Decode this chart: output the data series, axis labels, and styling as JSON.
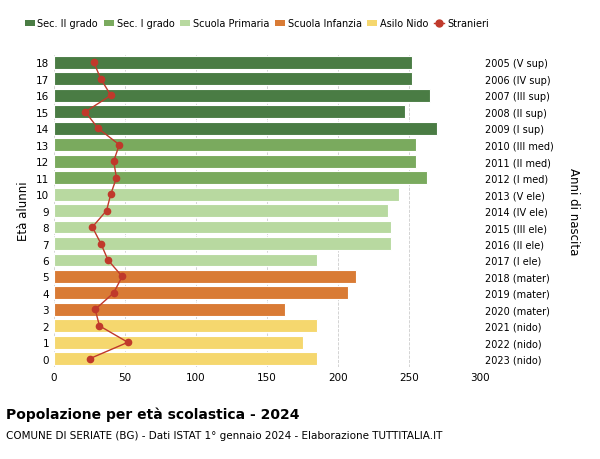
{
  "ages": [
    18,
    17,
    16,
    15,
    14,
    13,
    12,
    11,
    10,
    9,
    8,
    7,
    6,
    5,
    4,
    3,
    2,
    1,
    0
  ],
  "right_labels": [
    "2005 (V sup)",
    "2006 (IV sup)",
    "2007 (III sup)",
    "2008 (II sup)",
    "2009 (I sup)",
    "2010 (III med)",
    "2011 (II med)",
    "2012 (I med)",
    "2013 (V ele)",
    "2014 (IV ele)",
    "2015 (III ele)",
    "2016 (II ele)",
    "2017 (I ele)",
    "2018 (mater)",
    "2019 (mater)",
    "2020 (mater)",
    "2021 (nido)",
    "2022 (nido)",
    "2023 (nido)"
  ],
  "bar_values": [
    252,
    252,
    265,
    247,
    270,
    255,
    255,
    263,
    243,
    235,
    237,
    237,
    185,
    213,
    207,
    163,
    185,
    175,
    185
  ],
  "bar_colors": [
    "#4a7c44",
    "#4a7c44",
    "#4a7c44",
    "#4a7c44",
    "#4a7c44",
    "#7aaa5e",
    "#7aaa5e",
    "#7aaa5e",
    "#b8d9a0",
    "#b8d9a0",
    "#b8d9a0",
    "#b8d9a0",
    "#b8d9a0",
    "#d97b35",
    "#d97b35",
    "#d97b35",
    "#f5d76e",
    "#f5d76e",
    "#f5d76e"
  ],
  "stranieri_values": [
    28,
    33,
    40,
    22,
    31,
    46,
    42,
    44,
    40,
    37,
    27,
    33,
    38,
    48,
    42,
    29,
    32,
    52,
    25
  ],
  "title": "Popolazione per età scolastica - 2024",
  "subtitle": "COMUNE DI SERIATE (BG) - Dati ISTAT 1° gennaio 2024 - Elaborazione TUTTITALIA.IT",
  "ylabel": "Età alunni",
  "right_ylabel": "Anni di nascita",
  "xlim": [
    0,
    300
  ],
  "legend_labels": [
    "Sec. II grado",
    "Sec. I grado",
    "Scuola Primaria",
    "Scuola Infanzia",
    "Asilo Nido",
    "Stranieri"
  ],
  "legend_colors": [
    "#4a7c44",
    "#7aaa5e",
    "#b8d9a0",
    "#d97b35",
    "#f5d76e",
    "#c0392b"
  ],
  "stranieri_color": "#c0392b",
  "bar_height": 0.78,
  "background_color": "#ffffff",
  "grid_color": "#cccccc"
}
